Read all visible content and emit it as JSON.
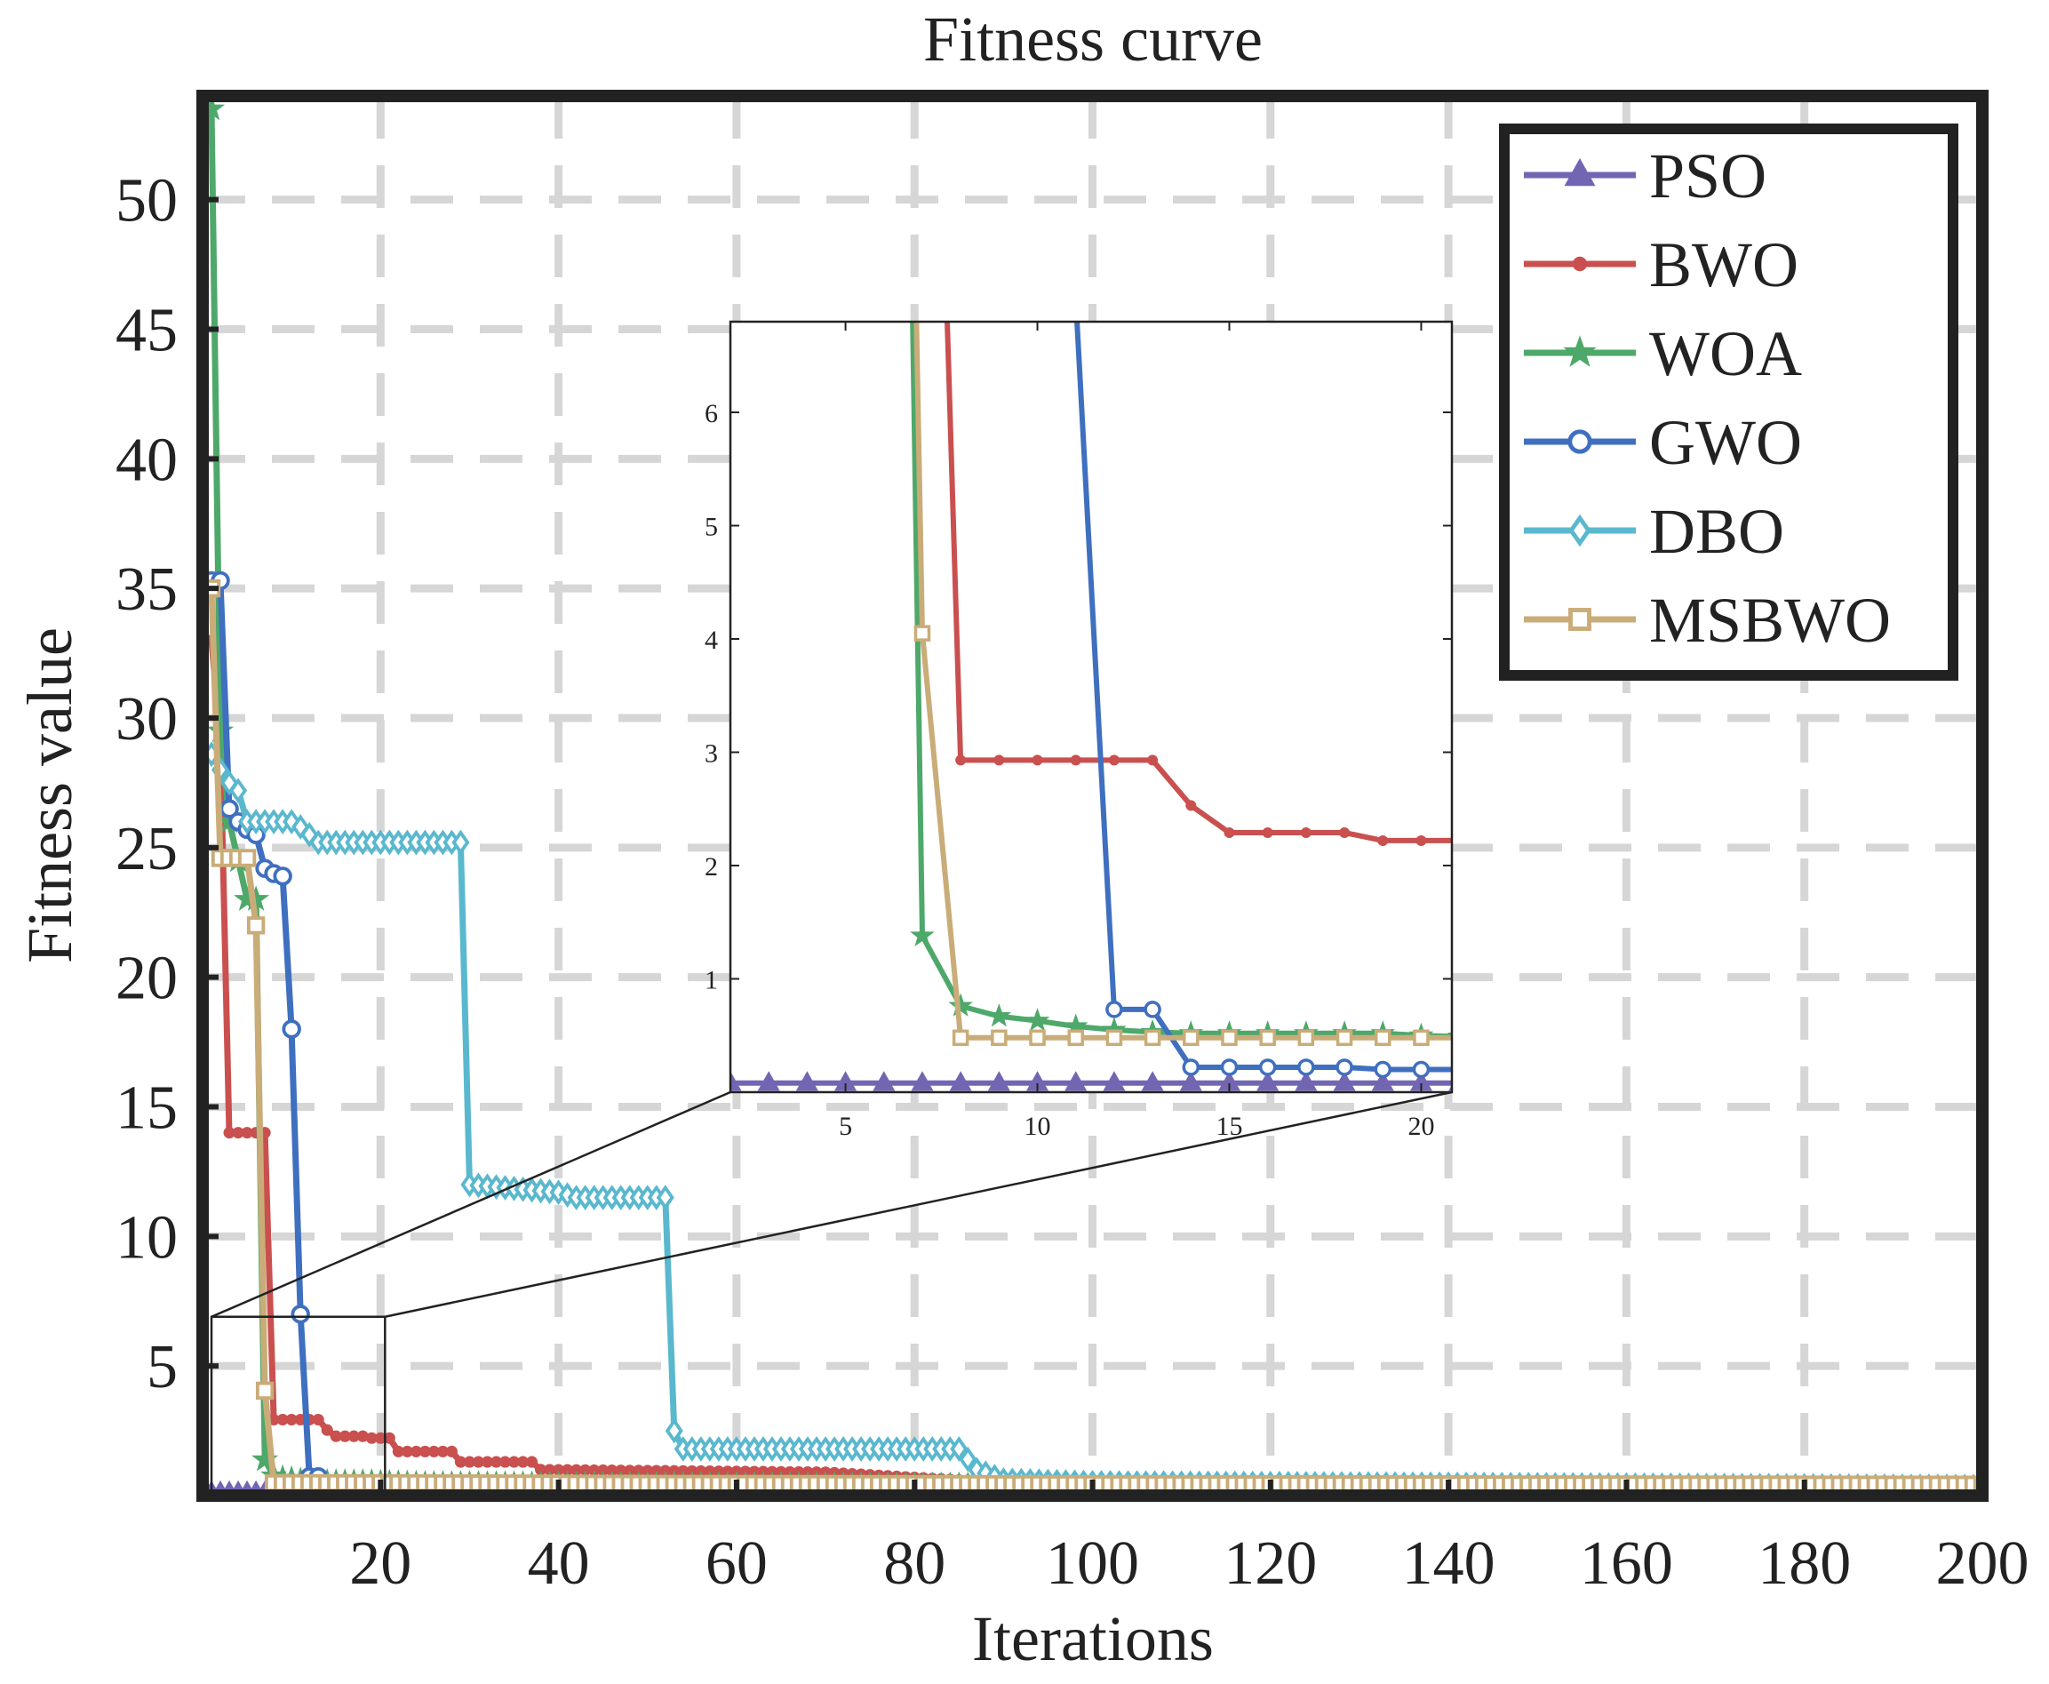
{
  "chart_data": {
    "type": "line",
    "title": "Fitness curve",
    "xlabel": "Iterations",
    "ylabel": "Fitness value",
    "xlim": [
      0,
      200
    ],
    "ylim": [
      0,
      54
    ],
    "xticks": [
      20,
      40,
      60,
      80,
      100,
      120,
      140,
      160,
      180,
      200
    ],
    "xtick_labels": [
      "20",
      "40",
      "60",
      "80",
      "100",
      "120",
      "140",
      "160",
      "180",
      "200"
    ],
    "yticks": [
      5,
      10,
      15,
      20,
      25,
      30,
      35,
      40,
      45,
      50
    ],
    "ytick_labels": [
      "5",
      "10",
      "15",
      "20",
      "25",
      "30",
      "35",
      "40",
      "45",
      "50"
    ],
    "grid": true,
    "legend_position": "top-right",
    "series": [
      {
        "name": "PSO",
        "color": "#7266b3",
        "marker": "triangle",
        "points": [
          [
            1,
            0.08
          ],
          [
            2,
            0.08
          ],
          [
            3,
            0.08
          ],
          [
            4,
            0.08
          ],
          [
            5,
            0.08
          ],
          [
            6,
            0.08
          ],
          [
            7,
            0.08
          ],
          [
            8,
            0.08
          ],
          [
            9,
            0.08
          ],
          [
            10,
            0.08
          ],
          [
            11,
            0.08
          ],
          [
            12,
            0.08
          ],
          [
            13,
            0.08
          ],
          [
            14,
            0.08
          ],
          [
            15,
            0.08
          ],
          [
            20,
            0.08
          ],
          [
            200,
            0.08
          ]
        ]
      },
      {
        "name": "BWO",
        "color": "#c9504f",
        "marker": "dot",
        "points": [
          [
            1,
            33
          ],
          [
            2,
            29
          ],
          [
            3,
            14
          ],
          [
            4,
            14
          ],
          [
            5,
            14
          ],
          [
            6,
            14
          ],
          [
            7,
            14
          ],
          [
            8,
            2.93
          ],
          [
            9,
            2.93
          ],
          [
            10,
            2.93
          ],
          [
            11,
            2.93
          ],
          [
            12,
            2.93
          ],
          [
            13,
            2.93
          ],
          [
            14,
            2.53
          ],
          [
            15,
            2.29
          ],
          [
            16,
            2.29
          ],
          [
            17,
            2.29
          ],
          [
            18,
            2.29
          ],
          [
            19,
            2.22
          ],
          [
            20,
            2.22
          ],
          [
            21,
            2.22
          ],
          [
            22,
            1.7
          ],
          [
            28,
            1.7
          ],
          [
            29,
            1.3
          ],
          [
            37,
            1.3
          ],
          [
            38,
            1.0
          ],
          [
            70,
            0.9
          ],
          [
            85,
            0.6
          ],
          [
            100,
            0.5
          ],
          [
            200,
            0.45
          ]
        ]
      },
      {
        "name": "WOA",
        "color": "#4ea86a",
        "marker": "star",
        "points": [
          [
            1,
            53.5
          ],
          [
            2,
            29.5
          ],
          [
            3,
            26
          ],
          [
            4,
            24.5
          ],
          [
            5,
            23
          ],
          [
            6,
            23
          ],
          [
            7,
            1.38
          ],
          [
            8,
            0.76
          ],
          [
            9,
            0.67
          ],
          [
            10,
            0.63
          ],
          [
            11,
            0.58
          ],
          [
            12,
            0.55
          ],
          [
            13,
            0.53
          ],
          [
            14,
            0.52
          ],
          [
            15,
            0.52
          ],
          [
            16,
            0.52
          ],
          [
            17,
            0.52
          ],
          [
            18,
            0.52
          ],
          [
            19,
            0.52
          ],
          [
            20,
            0.5
          ],
          [
            25,
            0.45
          ],
          [
            200,
            0.3
          ]
        ]
      },
      {
        "name": "GWO",
        "color": "#3f6fbf",
        "marker": "circle",
        "points": [
          [
            1,
            35.3
          ],
          [
            2,
            35.3
          ],
          [
            3,
            26.5
          ],
          [
            4,
            26
          ],
          [
            5,
            25.7
          ],
          [
            6,
            25.5
          ],
          [
            7,
            24.2
          ],
          [
            8,
            24
          ],
          [
            9,
            23.9
          ],
          [
            10,
            18
          ],
          [
            11,
            7
          ],
          [
            12,
            0.73
          ],
          [
            13,
            0.73
          ],
          [
            14,
            0.22
          ],
          [
            15,
            0.22
          ],
          [
            16,
            0.22
          ],
          [
            17,
            0.22
          ],
          [
            18,
            0.22
          ],
          [
            19,
            0.2
          ],
          [
            20,
            0.2
          ],
          [
            21,
            0.2
          ],
          [
            30,
            0.18
          ],
          [
            200,
            0.1
          ]
        ]
      },
      {
        "name": "DBO",
        "color": "#5ab8ce",
        "marker": "diamond",
        "points": [
          [
            1,
            28.6
          ],
          [
            2,
            28
          ],
          [
            3,
            27.5
          ],
          [
            4,
            27.2
          ],
          [
            5,
            26
          ],
          [
            10,
            26
          ],
          [
            11,
            25.8
          ],
          [
            13,
            25.2
          ],
          [
            29,
            25.2
          ],
          [
            30,
            12
          ],
          [
            40,
            11.7
          ],
          [
            42,
            11.5
          ],
          [
            52,
            11.5
          ],
          [
            53,
            2.5
          ],
          [
            54,
            1.8
          ],
          [
            85,
            1.8
          ],
          [
            87,
            1
          ],
          [
            90,
            0.6
          ],
          [
            100,
            0.5
          ],
          [
            200,
            0.35
          ]
        ]
      },
      {
        "name": "MSBWO",
        "color": "#c9ac78",
        "marker": "square",
        "points": [
          [
            1,
            35
          ],
          [
            2,
            24.6
          ],
          [
            3,
            24.6
          ],
          [
            4,
            24.6
          ],
          [
            5,
            24.6
          ],
          [
            6,
            22
          ],
          [
            7,
            4.05
          ],
          [
            8,
            0.48
          ],
          [
            9,
            0.48
          ],
          [
            10,
            0.48
          ],
          [
            11,
            0.48
          ],
          [
            12,
            0.48
          ],
          [
            13,
            0.48
          ],
          [
            14,
            0.48
          ],
          [
            15,
            0.48
          ],
          [
            16,
            0.48
          ],
          [
            17,
            0.48
          ],
          [
            18,
            0.48
          ],
          [
            19,
            0.48
          ],
          [
            20,
            0.48
          ],
          [
            21,
            0.48
          ],
          [
            50,
            0.45
          ],
          [
            200,
            0.42
          ]
        ]
      }
    ],
    "inset": {
      "xlim": [
        2,
        20.8
      ],
      "ylim": [
        0,
        6.8
      ],
      "xticks": [
        5,
        10,
        15,
        20
      ],
      "xtick_labels": [
        "5",
        "10",
        "15",
        "20"
      ],
      "yticks": [
        1,
        2,
        3,
        4,
        5,
        6
      ],
      "ytick_labels": [
        "1",
        "2",
        "3",
        "4",
        "5",
        "6"
      ],
      "zoom_region": {
        "x": [
          1,
          20.5
        ],
        "y": [
          0,
          6.9
        ]
      }
    }
  }
}
